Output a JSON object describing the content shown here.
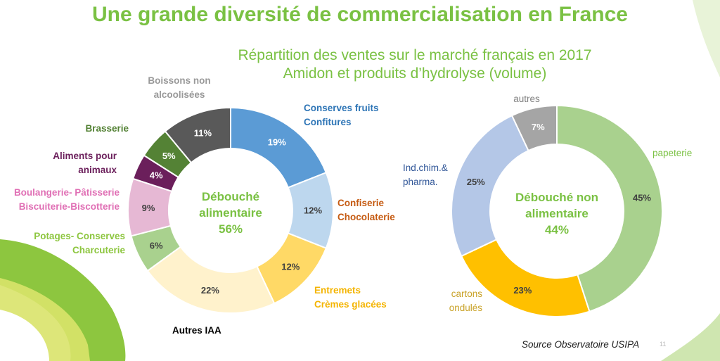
{
  "header": {
    "title": "Une grande diversité de commercialisation en France",
    "subtitle_line1": "Répartition des ventes sur le marché français en 2017",
    "subtitle_line2": "Amidon et produits d’hydrolyse (volume)"
  },
  "footer": {
    "source": "Source Observatoire USIPA",
    "page_number": "11"
  },
  "colors": {
    "title_green": "#7ac143",
    "swoosh_green": "#8dc63f",
    "swoosh_yellow": "#d4e157"
  },
  "chart_data": [
    {
      "type": "pie",
      "donut": true,
      "center_label": [
        "Débouché",
        "alimentaire",
        "56%"
      ],
      "center_color": "#7ac143",
      "slices": [
        {
          "label_lines": [
            "Conserves fruits",
            "Confitures"
          ],
          "value": 19,
          "pct_label": "19%",
          "color": "#5b9bd5",
          "label_color": "#2e75b6",
          "text_color": "#ffffff"
        },
        {
          "label_lines": [
            "Confiserie",
            "Chocolaterie"
          ],
          "value": 12,
          "pct_label": "12%",
          "color": "#bdd7ee",
          "label_color": "#c55a11",
          "text_color": "#404040"
        },
        {
          "label_lines": [
            "Entremets",
            "Crèmes glacées"
          ],
          "value": 12,
          "pct_label": "12%",
          "color": "#ffd966",
          "label_color": "#f4b400",
          "text_color": "#404040"
        },
        {
          "label_lines": [
            "Autres IAA"
          ],
          "value": 22,
          "pct_label": "22%",
          "color": "#fff2cc",
          "label_color": "#000000",
          "text_color": "#404040"
        },
        {
          "label_lines": [
            "Potages- Conserves",
            "Charcuterie"
          ],
          "value": 6,
          "pct_label": "6%",
          "color": "#a9d18e",
          "label_color": "#8dc63f",
          "text_color": "#404040"
        },
        {
          "label_lines": [
            "Boulangerie- Pâtisserie",
            "Biscuiterie-Biscotterie"
          ],
          "value": 9,
          "pct_label": "9%",
          "color": "#e6b8d4",
          "label_color": "#e070b5",
          "text_color": "#404040"
        },
        {
          "label_lines": [
            "Aliments pour",
            "animaux"
          ],
          "value": 4,
          "pct_label": "4%",
          "color": "#6b1f5b",
          "label_color": "#6b1f5b",
          "text_color": "#ffffff"
        },
        {
          "label_lines": [
            "Brasserie"
          ],
          "value": 5,
          "pct_label": "5%",
          "color": "#548235",
          "label_color": "#548235",
          "text_color": "#ffffff"
        },
        {
          "label_lines": [
            "Boissons non",
            "alcoolisées"
          ],
          "value": 11,
          "pct_label": "11%",
          "color": "#595959",
          "label_color": "#999999",
          "text_color": "#ffffff"
        }
      ]
    },
    {
      "type": "pie",
      "donut": true,
      "center_label": [
        "Débouché non",
        "alimentaire",
        "44%"
      ],
      "center_color": "#7ac143",
      "slices": [
        {
          "label_lines": [
            "papeterie"
          ],
          "value": 45,
          "pct_label": "45%",
          "color": "#a9d18e",
          "label_color": "#7ac143",
          "text_color": "#404040"
        },
        {
          "label_lines": [
            "cartons",
            "ondulés"
          ],
          "value": 23,
          "pct_label": "23%",
          "color": "#ffc000",
          "label_color": "#c9a227",
          "text_color": "#404040"
        },
        {
          "label_lines": [
            "Ind.chim.&",
            "pharma."
          ],
          "value": 25,
          "pct_label": "25%",
          "color": "#b4c7e7",
          "label_color": "#2f5597",
          "text_color": "#404040"
        },
        {
          "label_lines": [
            "autres"
          ],
          "value": 7,
          "pct_label": "7%",
          "color": "#a5a5a5",
          "label_color": "#808080",
          "text_color": "#ffffff"
        }
      ]
    }
  ]
}
